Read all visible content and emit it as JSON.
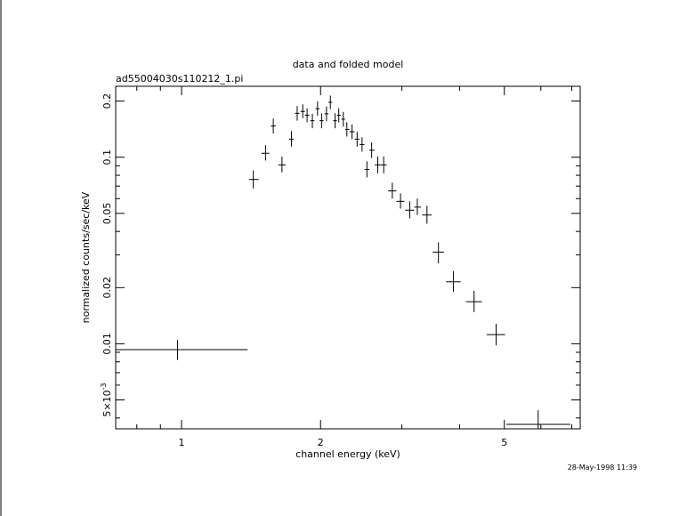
{
  "chart_data": {
    "type": "scatter",
    "title": "data and folded model",
    "subtitle": "ad55004030s110212_1.pi",
    "xlabel": "channel energy (keV)",
    "ylabel": "normalized counts/sec/keV",
    "timestamp": "28-May-1998 11:39",
    "x_scale": "log",
    "y_scale": "log",
    "xlim": [
      0.72,
      7.3
    ],
    "ylim": [
      0.0035,
      0.24
    ],
    "x_tick_labels": [
      {
        "value": 1,
        "label": "1"
      },
      {
        "value": 2,
        "label": "2"
      },
      {
        "value": 5,
        "label": "5"
      }
    ],
    "y_tick_labels": [
      {
        "value": 0.005,
        "label": "5×10"
      },
      {
        "value": 0.01,
        "label": "0.01"
      },
      {
        "value": 0.02,
        "label": "0.02"
      },
      {
        "value": 0.05,
        "label": "0.05"
      },
      {
        "value": 0.1,
        "label": "0.1"
      },
      {
        "value": 0.2,
        "label": "0.2"
      }
    ],
    "y_tick_exponent": "-3",
    "grid": false,
    "series": [
      {
        "points": [
          {
            "x": 0.98,
            "xlo": 0.72,
            "xhi": 1.39,
            "y": 0.0093,
            "ylo": 0.0082,
            "yhi": 0.0105
          },
          {
            "x": 1.43,
            "xlo": 1.4,
            "xhi": 1.47,
            "y": 0.076,
            "ylo": 0.068,
            "yhi": 0.085
          },
          {
            "x": 1.52,
            "xlo": 1.49,
            "xhi": 1.55,
            "y": 0.105,
            "ylo": 0.096,
            "yhi": 0.116
          },
          {
            "x": 1.58,
            "xlo": 1.56,
            "xhi": 1.6,
            "y": 0.147,
            "ylo": 0.134,
            "yhi": 0.161
          },
          {
            "x": 1.65,
            "xlo": 1.62,
            "xhi": 1.68,
            "y": 0.091,
            "ylo": 0.083,
            "yhi": 0.101
          },
          {
            "x": 1.73,
            "xlo": 1.71,
            "xhi": 1.75,
            "y": 0.125,
            "ylo": 0.114,
            "yhi": 0.138
          },
          {
            "x": 1.78,
            "xlo": 1.76,
            "xhi": 1.8,
            "y": 0.172,
            "ylo": 0.157,
            "yhi": 0.188
          },
          {
            "x": 1.83,
            "xlo": 1.81,
            "xhi": 1.85,
            "y": 0.176,
            "ylo": 0.162,
            "yhi": 0.192
          },
          {
            "x": 1.87,
            "xlo": 1.85,
            "xhi": 1.89,
            "y": 0.168,
            "ylo": 0.154,
            "yhi": 0.183
          },
          {
            "x": 1.92,
            "xlo": 1.9,
            "xhi": 1.94,
            "y": 0.157,
            "ylo": 0.143,
            "yhi": 0.171
          },
          {
            "x": 1.97,
            "xlo": 1.95,
            "xhi": 1.99,
            "y": 0.182,
            "ylo": 0.167,
            "yhi": 0.199
          },
          {
            "x": 2.01,
            "xlo": 1.99,
            "xhi": 2.03,
            "y": 0.157,
            "ylo": 0.143,
            "yhi": 0.172
          },
          {
            "x": 2.06,
            "xlo": 2.04,
            "xhi": 2.08,
            "y": 0.171,
            "ylo": 0.156,
            "yhi": 0.187
          },
          {
            "x": 2.1,
            "xlo": 2.08,
            "xhi": 2.12,
            "y": 0.197,
            "ylo": 0.181,
            "yhi": 0.214
          },
          {
            "x": 2.15,
            "xlo": 2.13,
            "xhi": 2.17,
            "y": 0.157,
            "ylo": 0.143,
            "yhi": 0.172
          },
          {
            "x": 2.19,
            "xlo": 2.17,
            "xhi": 2.21,
            "y": 0.168,
            "ylo": 0.154,
            "yhi": 0.183
          },
          {
            "x": 2.24,
            "xlo": 2.22,
            "xhi": 2.26,
            "y": 0.16,
            "ylo": 0.146,
            "yhi": 0.175
          },
          {
            "x": 2.28,
            "xlo": 2.26,
            "xhi": 2.31,
            "y": 0.141,
            "ylo": 0.129,
            "yhi": 0.154
          },
          {
            "x": 2.34,
            "xlo": 2.31,
            "xhi": 2.37,
            "y": 0.137,
            "ylo": 0.125,
            "yhi": 0.15
          },
          {
            "x": 2.4,
            "xlo": 2.37,
            "xhi": 2.43,
            "y": 0.125,
            "ylo": 0.114,
            "yhi": 0.137
          },
          {
            "x": 2.46,
            "xlo": 2.43,
            "xhi": 2.49,
            "y": 0.117,
            "ylo": 0.107,
            "yhi": 0.128
          },
          {
            "x": 2.52,
            "xlo": 2.49,
            "xhi": 2.55,
            "y": 0.086,
            "ylo": 0.078,
            "yhi": 0.095
          },
          {
            "x": 2.58,
            "xlo": 2.55,
            "xhi": 2.62,
            "y": 0.109,
            "ylo": 0.099,
            "yhi": 0.12
          },
          {
            "x": 2.66,
            "xlo": 2.62,
            "xhi": 2.7,
            "y": 0.091,
            "ylo": 0.082,
            "yhi": 0.101
          },
          {
            "x": 2.74,
            "xlo": 2.7,
            "xhi": 2.78,
            "y": 0.091,
            "ylo": 0.082,
            "yhi": 0.101
          },
          {
            "x": 2.86,
            "xlo": 2.8,
            "xhi": 2.92,
            "y": 0.066,
            "ylo": 0.06,
            "yhi": 0.073
          },
          {
            "x": 2.98,
            "xlo": 2.92,
            "xhi": 3.04,
            "y": 0.058,
            "ylo": 0.053,
            "yhi": 0.064
          },
          {
            "x": 3.12,
            "xlo": 3.05,
            "xhi": 3.19,
            "y": 0.052,
            "ylo": 0.047,
            "yhi": 0.058
          },
          {
            "x": 3.24,
            "xlo": 3.19,
            "xhi": 3.3,
            "y": 0.054,
            "ylo": 0.049,
            "yhi": 0.06
          },
          {
            "x": 3.4,
            "xlo": 3.32,
            "xhi": 3.48,
            "y": 0.049,
            "ylo": 0.044,
            "yhi": 0.055
          },
          {
            "x": 3.6,
            "xlo": 3.5,
            "xhi": 3.7,
            "y": 0.031,
            "ylo": 0.027,
            "yhi": 0.035
          },
          {
            "x": 3.88,
            "xlo": 3.74,
            "xhi": 4.02,
            "y": 0.0215,
            "ylo": 0.019,
            "yhi": 0.0245
          },
          {
            "x": 4.3,
            "xlo": 4.13,
            "xhi": 4.47,
            "y": 0.0168,
            "ylo": 0.0148,
            "yhi": 0.0192
          },
          {
            "x": 4.8,
            "xlo": 4.58,
            "xhi": 5.02,
            "y": 0.0112,
            "ylo": 0.0098,
            "yhi": 0.0128
          },
          {
            "x": 5.92,
            "xlo": 5.05,
            "xhi": 6.95,
            "y": 0.0037,
            "ylo": 0.0035,
            "yhi": 0.0044
          }
        ]
      }
    ]
  }
}
